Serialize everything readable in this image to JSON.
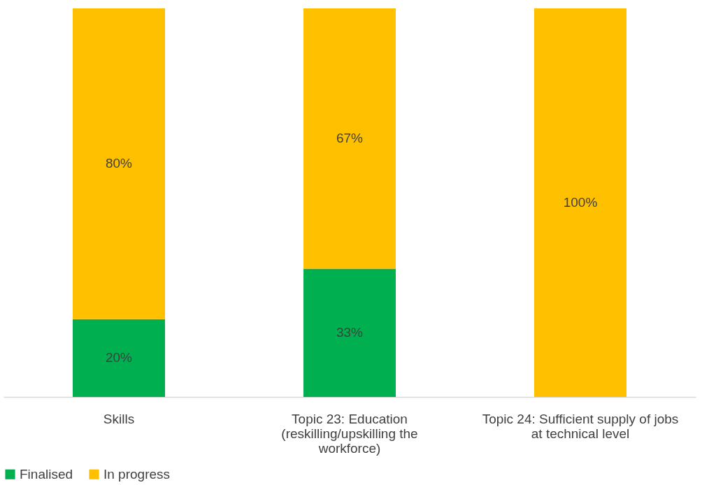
{
  "chart_data": {
    "type": "bar",
    "stacked": true,
    "categories": [
      "Skills",
      "Topic 23: Education (reskilling/upskilling the workforce)",
      "Topic 24: Sufficient supply of jobs at technical level"
    ],
    "series": [
      {
        "name": "Finalised",
        "color": "#00b050",
        "values": [
          20,
          33,
          0
        ],
        "value_labels": [
          "20%",
          "33%",
          null
        ]
      },
      {
        "name": "In progress",
        "color": "#ffc000",
        "values": [
          80,
          67,
          100
        ],
        "value_labels": [
          "80%",
          "67%",
          "100%"
        ]
      }
    ],
    "ylim": [
      0,
      100
    ],
    "tick_labels": "x",
    "legend": "bottom",
    "grid": false
  }
}
